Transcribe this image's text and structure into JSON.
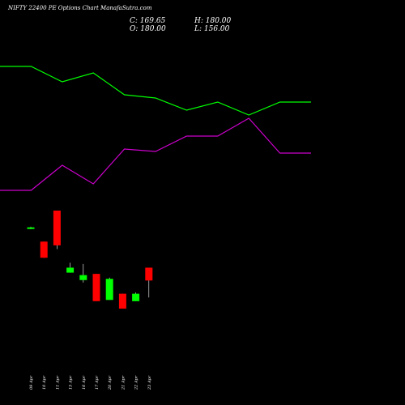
{
  "header": {
    "title": "NIFTY 22400  PE Options  Chart ManafaSutra.com",
    "close_label": "C: 169.65",
    "high_label": "H: 180.00",
    "open_label": "O: 180.00",
    "low_label": "L: 156.00"
  },
  "colors": {
    "background": "#000000",
    "up": "#00ff00",
    "down": "#ff0000",
    "line_green": "#00ff00",
    "line_magenta": "#cc00cc",
    "text": "#ffffff"
  },
  "chart_data": {
    "type": "candlestick",
    "title": "NIFTY 22400  PE Options  Chart ManafaSutra.com",
    "categories": [
      "09 Apr",
      "10 Apr",
      "11 Apr",
      "15 Apr",
      "16 Apr",
      "17 Apr",
      "20 Apr",
      "21 Apr",
      "22 Apr",
      "23 Apr"
    ],
    "candles": [
      {
        "date": "09 Apr",
        "open": 212,
        "high": 213,
        "low": 211,
        "close": 212.5
      },
      {
        "date": "10 Apr",
        "open": 201,
        "high": 201,
        "low": 188,
        "close": 188
      },
      {
        "date": "11 Apr",
        "open": 226,
        "high": 226,
        "low": 195,
        "close": 198
      },
      {
        "date": "15 Apr",
        "open": 176,
        "high": 184,
        "low": 176,
        "close": 180
      },
      {
        "date": "16 Apr",
        "open": 170,
        "high": 183,
        "low": 168,
        "close": 174
      },
      {
        "date": "17 Apr",
        "open": 175,
        "high": 175,
        "low": 153,
        "close": 153
      },
      {
        "date": "20 Apr",
        "open": 154,
        "high": 172,
        "low": 154,
        "close": 171
      },
      {
        "date": "21 Apr",
        "open": 159,
        "high": 159,
        "low": 147,
        "close": 147
      },
      {
        "date": "22 Apr",
        "open": 153,
        "high": 160,
        "low": 153,
        "close": 159
      },
      {
        "date": "23 Apr",
        "open": 180,
        "high": 180,
        "low": 156,
        "close": 169.65
      }
    ],
    "lines": [
      {
        "color": "#00ff00",
        "values": [
          82,
          82,
          101,
          90,
          117,
          121,
          136,
          126,
          142,
          126
        ]
      },
      {
        "color": "#cc00cc",
        "values": [
          235,
          235,
          204,
          227,
          184,
          187,
          168,
          168,
          146,
          189
        ]
      }
    ]
  }
}
